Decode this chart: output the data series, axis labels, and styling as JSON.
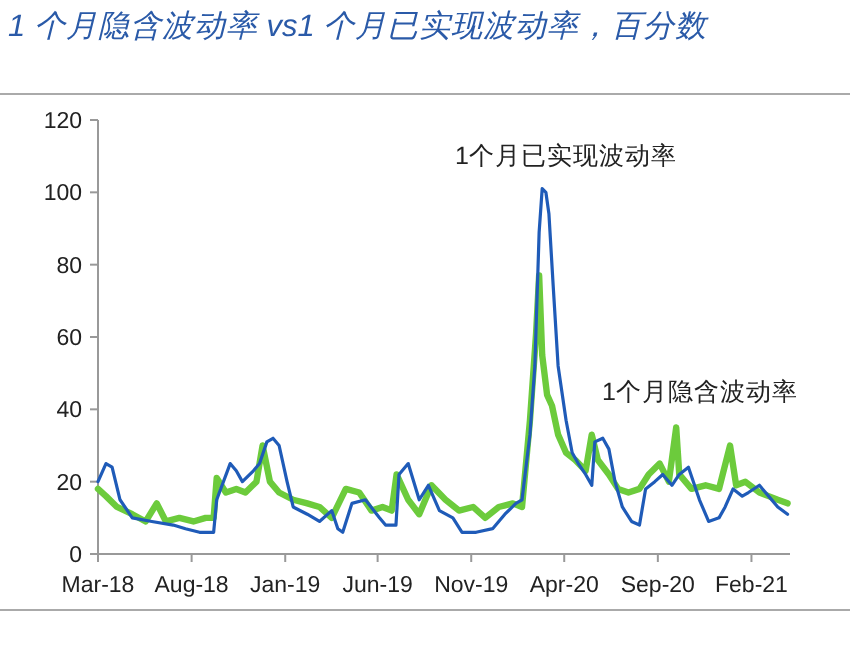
{
  "chart_data": {
    "type": "line",
    "title": "1 个月隐含波动率 vs1 个月已实现波动率，百分数",
    "xlim": [
      "2018-03-01",
      "2021-04-05"
    ],
    "xticks": [
      {
        "value": "2018-03",
        "label": "Mar-18"
      },
      {
        "value": "2018-08",
        "label": "Aug-18"
      },
      {
        "value": "2019-01",
        "label": "Jan-19"
      },
      {
        "value": "2019-06",
        "label": "Jun-19"
      },
      {
        "value": "2019-11",
        "label": "Nov-19"
      },
      {
        "value": "2020-04",
        "label": "Apr-20"
      },
      {
        "value": "2020-09",
        "label": "Sep-20"
      },
      {
        "value": "2021-02",
        "label": "Feb-21"
      }
    ],
    "ylim": [
      0,
      120
    ],
    "yticks": [
      0,
      20,
      40,
      60,
      80,
      100,
      120
    ],
    "series": [
      {
        "name": "1个月隐含波动率",
        "color": "#6ccb3c",
        "x": [
          "2018-03-01",
          "2018-03-14",
          "2018-04-01",
          "2018-04-26",
          "2018-05-18",
          "2018-06-05",
          "2018-06-20",
          "2018-07-12",
          "2018-08-04",
          "2018-08-24",
          "2018-09-06",
          "2018-09-11",
          "2018-09-26",
          "2018-10-13",
          "2018-10-28",
          "2018-11-15",
          "2018-11-25",
          "2018-12-07",
          "2018-12-22",
          "2019-01-14",
          "2019-02-06",
          "2019-02-26",
          "2019-03-18",
          "2019-04-10",
          "2019-05-02",
          "2019-05-22",
          "2019-06-09",
          "2019-06-24",
          "2019-07-02",
          "2019-07-21",
          "2019-08-08",
          "2019-08-28",
          "2019-09-20",
          "2019-10-12",
          "2019-11-04",
          "2019-11-24",
          "2019-12-16",
          "2020-01-08",
          "2020-01-23",
          "2020-02-05",
          "2020-02-15",
          "2020-02-20",
          "2020-02-25",
          "2020-03-04",
          "2020-03-12",
          "2020-03-22",
          "2020-04-04",
          "2020-04-19",
          "2020-05-06",
          "2020-05-16",
          "2020-05-26",
          "2020-06-13",
          "2020-06-28",
          "2020-07-15",
          "2020-08-02",
          "2020-08-17",
          "2020-09-04",
          "2020-09-19",
          "2020-10-01",
          "2020-10-06",
          "2020-10-26",
          "2020-11-18",
          "2020-12-10",
          "2020-12-28",
          "2021-01-07",
          "2021-01-22",
          "2021-02-14",
          "2021-03-01",
          "2021-03-16",
          "2021-04-01"
        ],
        "values": [
          18,
          16,
          13,
          11,
          9,
          14,
          9,
          10,
          9,
          10,
          10,
          21,
          17,
          18,
          17,
          20,
          30,
          20,
          17,
          15,
          14,
          13,
          10,
          18,
          17,
          12,
          13,
          12,
          22,
          15,
          11,
          19,
          15,
          12,
          13,
          10,
          13,
          14,
          13,
          37,
          61,
          77,
          55,
          44,
          41,
          33,
          28,
          26,
          23,
          33,
          26,
          22,
          18,
          17,
          18,
          22,
          25,
          20,
          35,
          22,
          18,
          19,
          18,
          30,
          19,
          20,
          17,
          16,
          15,
          14
        ]
      },
      {
        "name": "1个月已实现波动率",
        "color": "#1f5bb8",
        "x": [
          "2018-03-01",
          "2018-03-14",
          "2018-03-24",
          "2018-04-06",
          "2018-04-26",
          "2018-05-28",
          "2018-07-02",
          "2018-07-22",
          "2018-08-14",
          "2018-09-06",
          "2018-09-11",
          "2018-10-03",
          "2018-10-13",
          "2018-10-23",
          "2018-11-10",
          "2018-11-20",
          "2018-12-02",
          "2018-12-12",
          "2018-12-22",
          "2019-01-04",
          "2019-01-14",
          "2019-02-06",
          "2019-02-26",
          "2019-03-18",
          "2019-03-28",
          "2019-04-05",
          "2019-04-20",
          "2019-05-12",
          "2019-06-04",
          "2019-06-14",
          "2019-07-01",
          "2019-07-06",
          "2019-07-21",
          "2019-08-08",
          "2019-08-23",
          "2019-09-10",
          "2019-10-02",
          "2019-10-17",
          "2019-11-09",
          "2019-12-06",
          "2019-12-26",
          "2020-01-13",
          "2020-01-23",
          "2020-02-05",
          "2020-02-13",
          "2020-02-20",
          "2020-02-25",
          "2020-03-02",
          "2020-03-07",
          "2020-03-14",
          "2020-03-22",
          "2020-04-04",
          "2020-04-14",
          "2020-04-24",
          "2020-05-06",
          "2020-05-16",
          "2020-05-21",
          "2020-06-03",
          "2020-06-13",
          "2020-06-23",
          "2020-07-05",
          "2020-07-20",
          "2020-08-02",
          "2020-08-12",
          "2020-08-27",
          "2020-09-09",
          "2020-09-24",
          "2020-10-06",
          "2020-10-21",
          "2020-11-08",
          "2020-11-23",
          "2020-12-10",
          "2020-12-20",
          "2021-01-02",
          "2021-01-17",
          "2021-01-27",
          "2021-02-14",
          "2021-03-01",
          "2021-03-16",
          "2021-04-01"
        ],
        "values": [
          20,
          25,
          24,
          15,
          10,
          9,
          8,
          7,
          6,
          6,
          15,
          25,
          23,
          20,
          23,
          25,
          31,
          32,
          30,
          20,
          13,
          11,
          9,
          12,
          7,
          6,
          14,
          15,
          10,
          8,
          8,
          22,
          25,
          15,
          19,
          12,
          10,
          6,
          6,
          7,
          11,
          14,
          15,
          33,
          52,
          89,
          101,
          100,
          94,
          74,
          52,
          37,
          28,
          25,
          22,
          19,
          31,
          32,
          29,
          20,
          13,
          9,
          8,
          18,
          20,
          22,
          19,
          22,
          24,
          15,
          9,
          10,
          13,
          18,
          16,
          17,
          19,
          16,
          13,
          11
        ]
      }
    ]
  }
}
